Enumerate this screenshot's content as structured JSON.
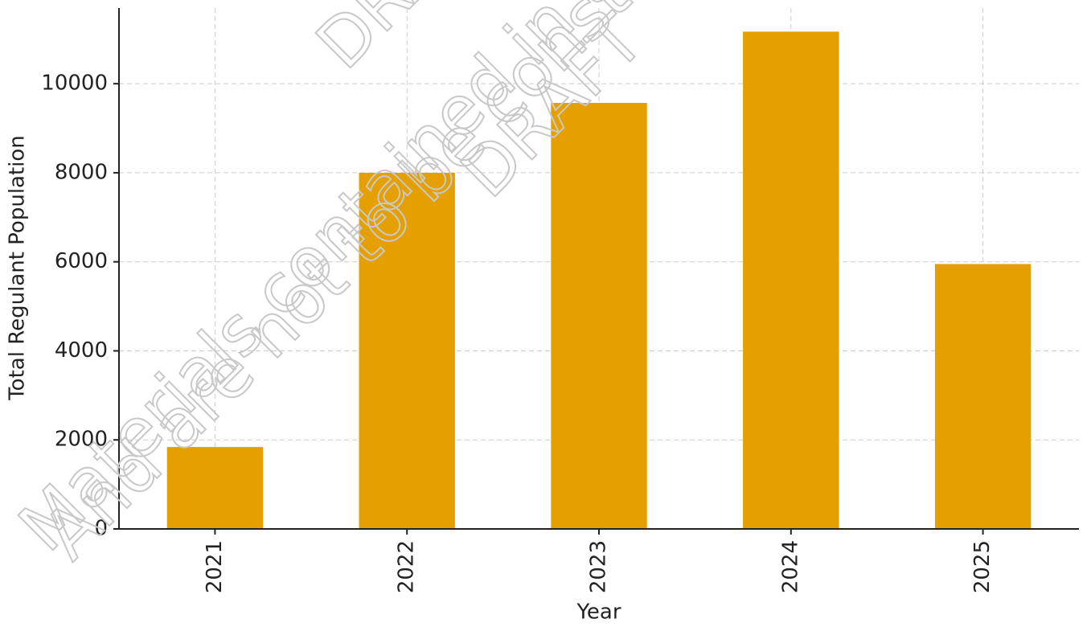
{
  "chart_data": {
    "type": "bar",
    "x_label": "Year",
    "y_label": "Total Regulant Population",
    "categories": [
      "2021",
      "2022",
      "2023",
      "2024",
      "2025"
    ],
    "values": [
      1840,
      8000,
      9570,
      11170,
      5950
    ],
    "color": "#e5a000",
    "ylim": [
      0,
      11700
    ],
    "yticks": [
      0,
      2000,
      4000,
      6000,
      8000,
      10000
    ],
    "grid": true,
    "annotations": [
      "DRAFT AGE",
      "Materials contained in this agend",
      "And are not to be construed as reg",
      "DRAFT"
    ]
  }
}
